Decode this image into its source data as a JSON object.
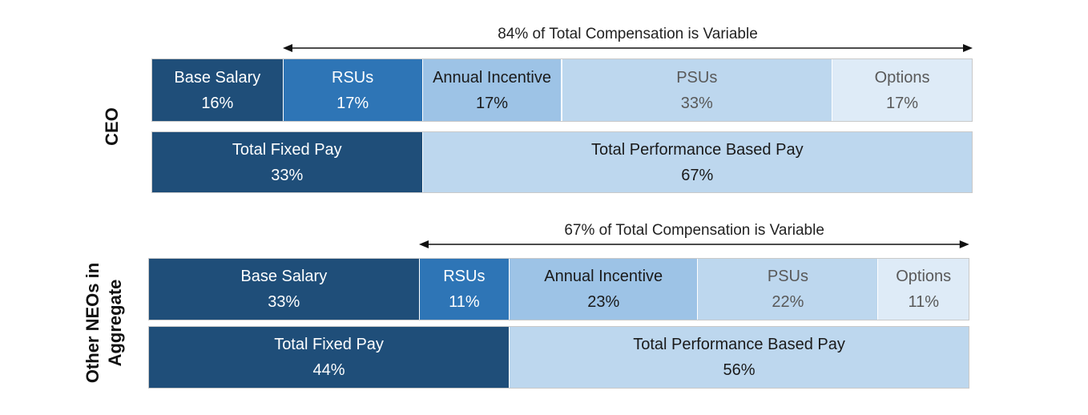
{
  "chart_data": {
    "type": "stacked-bar",
    "unit": "%",
    "groups": [
      {
        "id": "ceo",
        "label_lines": [
          "CEO"
        ],
        "variable_note": "84% of Total Compensation is Variable",
        "variable_percent": 84,
        "components": [
          {
            "label": "Base Salary",
            "value": 16,
            "value_text": "16%",
            "color": "#1f4e79",
            "text_color": "#ffffff"
          },
          {
            "label": "RSUs",
            "value": 17,
            "value_text": "17%",
            "color": "#2e75b6",
            "text_color": "#ffffff"
          },
          {
            "label": "Annual Incentive",
            "value": 17,
            "value_text": "17%",
            "color": "#9dc3e6",
            "text_color": "#1a1a1a"
          },
          {
            "label": "PSUs",
            "value": 33,
            "value_text": "33%",
            "color": "#bdd7ee",
            "text_color": "#595959"
          },
          {
            "label": "Options",
            "value": 17,
            "value_text": "17%",
            "color": "#deebf7",
            "text_color": "#595959"
          }
        ],
        "totals": [
          {
            "label": "Total Fixed Pay",
            "value": 33,
            "value_text": "33%",
            "color": "#1f4e79",
            "text_color": "#ffffff"
          },
          {
            "label": "Total Performance Based Pay",
            "value": 67,
            "value_text": "67%",
            "color": "#bdd7ee",
            "text_color": "#1a1a1a"
          }
        ]
      },
      {
        "id": "other-neos",
        "label_lines": [
          "Other NEOs in",
          "Aggregate"
        ],
        "variable_note": "67% of Total Compensation is Variable",
        "variable_percent": 67,
        "components": [
          {
            "label": "Base Salary",
            "value": 33,
            "value_text": "33%",
            "color": "#1f4e79",
            "text_color": "#ffffff"
          },
          {
            "label": "RSUs",
            "value": 11,
            "value_text": "11%",
            "color": "#2e75b6",
            "text_color": "#ffffff"
          },
          {
            "label": "Annual Incentive",
            "value": 23,
            "value_text": "23%",
            "color": "#9dc3e6",
            "text_color": "#1a1a1a"
          },
          {
            "label": "PSUs",
            "value": 22,
            "value_text": "22%",
            "color": "#bdd7ee",
            "text_color": "#595959"
          },
          {
            "label": "Options",
            "value": 11,
            "value_text": "11%",
            "color": "#deebf7",
            "text_color": "#595959"
          }
        ],
        "totals": [
          {
            "label": "Total Fixed Pay",
            "value": 44,
            "value_text": "44%",
            "color": "#1f4e79",
            "text_color": "#ffffff"
          },
          {
            "label": "Total Performance Based Pay",
            "value": 56,
            "value_text": "56%",
            "color": "#bdd7ee",
            "text_color": "#1a1a1a"
          }
        ]
      }
    ]
  }
}
